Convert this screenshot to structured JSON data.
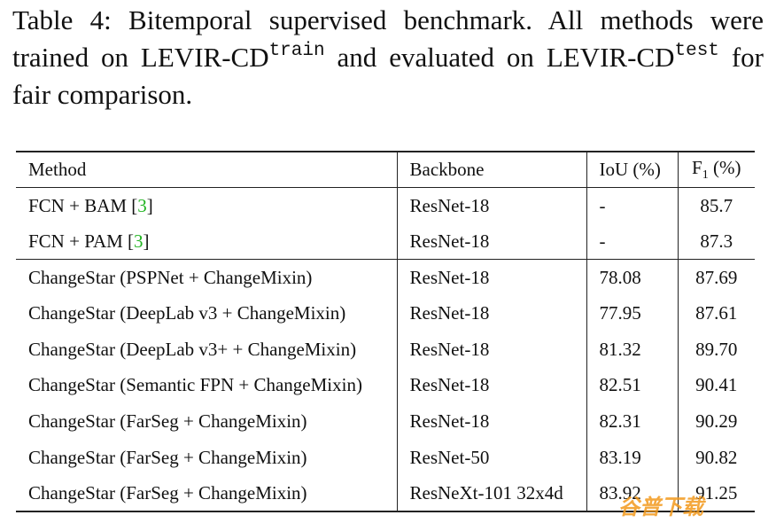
{
  "caption": {
    "text1": "Table 4: Bitemporal supervised benchmark. All methods were trained on LEVIR-CD",
    "sup1": "train",
    "text2": "and evaluated on LEVIR-CD",
    "sup2": "test",
    "text3": "for fair comparison."
  },
  "table": {
    "header": {
      "method": "Method",
      "backbone": "Backbone",
      "iou": "IoU (%)",
      "f1_base": "F",
      "f1_sub": "1",
      "f1_unit": "(%)"
    },
    "rows": [
      {
        "method": "FCN + BAM",
        "cite": "3",
        "backbone": "ResNet-18",
        "iou": "-",
        "f1": "85.7"
      },
      {
        "method": "FCN + PAM",
        "cite": "3",
        "backbone": "ResNet-18",
        "iou": "-",
        "f1": "87.3"
      },
      {
        "method": "ChangeStar (PSPNet + ChangeMixin)",
        "backbone": "ResNet-18",
        "iou": "78.08",
        "f1": "87.69"
      },
      {
        "method": "ChangeStar (DeepLab v3 + ChangeMixin)",
        "backbone": "ResNet-18",
        "iou": "77.95",
        "f1": "87.61"
      },
      {
        "method": "ChangeStar (DeepLab v3+ + ChangeMixin)",
        "backbone": "ResNet-18",
        "iou": "81.32",
        "f1": "89.70"
      },
      {
        "method": "ChangeStar (Semantic FPN + ChangeMixin)",
        "backbone": "ResNet-18",
        "iou": "82.51",
        "f1": "90.41"
      },
      {
        "method": "ChangeStar (FarSeg + ChangeMixin)",
        "backbone": "ResNet-18",
        "iou": "82.31",
        "f1": "90.29"
      },
      {
        "method": "ChangeStar (FarSeg + ChangeMixin)",
        "backbone": "ResNet-50",
        "iou": "83.19",
        "f1": "90.82"
      },
      {
        "method": "ChangeStar (FarSeg + ChangeMixin)",
        "backbone": "ResNeXt-101 32x4d",
        "iou": "83.92",
        "f1": "91.25"
      }
    ]
  },
  "watermark": "谷普下载"
}
